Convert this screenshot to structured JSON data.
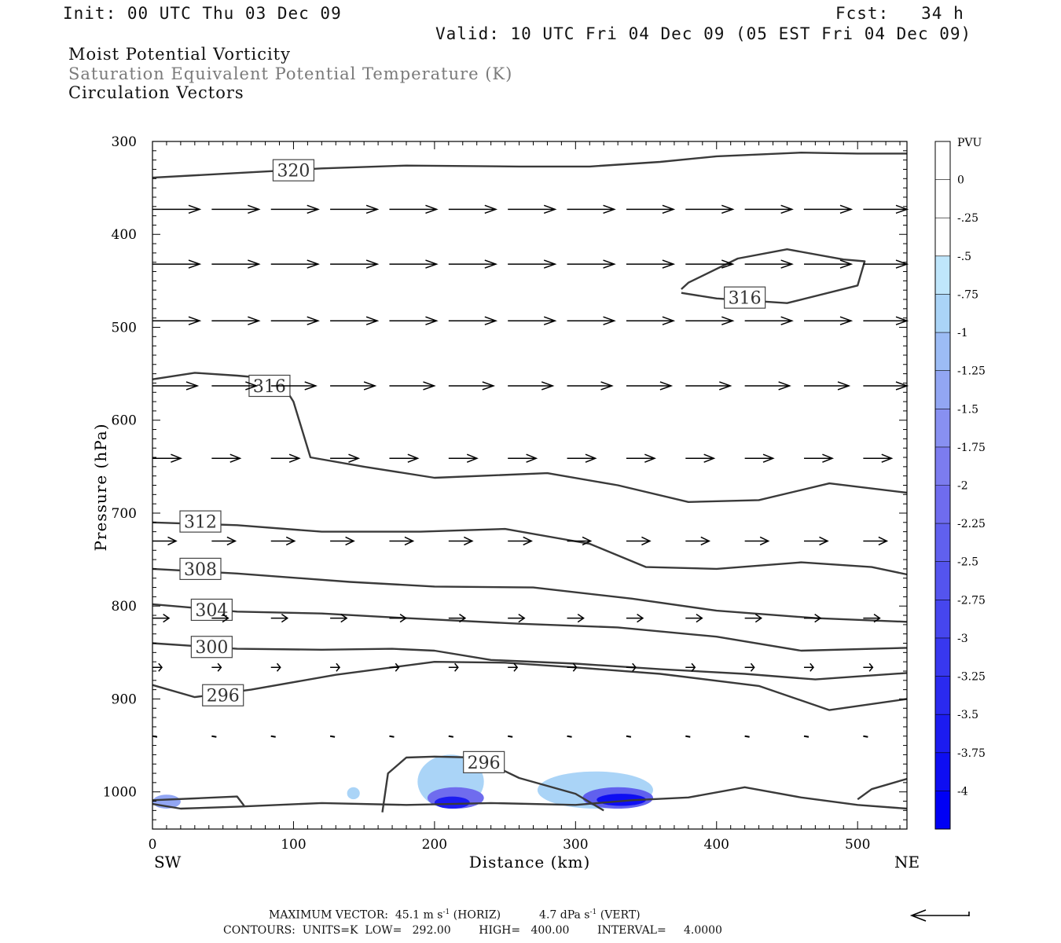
{
  "header": {
    "init": "Init: 00 UTC Thu 03 Dec 09",
    "fcst": "Fcst:   34 h",
    "valid": "Valid: 10 UTC Fri 04 Dec 09 (05 EST Fri 04 Dec 09)",
    "line1": "Moist Potential Vorticity",
    "line2": "Saturation Equivalent Potential Temperature (K)",
    "line3": "Circulation Vectors"
  },
  "footer": {
    "max_vector_label": "MAXIMUM VECTOR:",
    "horiz_value": "45.1 m s",
    "horiz_sup": "-1",
    "horiz_tag": "(HORIZ)",
    "vert_value": "4.7 dPa s",
    "vert_sup": "-1",
    "vert_tag": "(VERT)",
    "contours": "CONTOURS:  UNITS=K  LOW=   292.00        HIGH=   400.00        INTERVAL=     4.0000"
  },
  "colors": {
    "contour": "#3a3a3a",
    "shade": [
      "#ffffff",
      "#ffffff",
      "#bfe6fb",
      "#aad4f7",
      "#9cbcf5",
      "#92a6f3",
      "#8890f1",
      "#7c7cef",
      "#6f6cee",
      "#6060ee",
      "#5454ee",
      "#4646ee",
      "#3838ef",
      "#2a2aef",
      "#1c1cf0",
      "#0e0ef2",
      "#0000f5"
    ]
  },
  "chart_data": {
    "type": "cross-section",
    "xlabel": "Distance (km)",
    "ylabel": "Pressure (hPa)",
    "xlim": [
      0,
      535
    ],
    "ylim": [
      300,
      1040
    ],
    "x_ticks": [
      "0",
      "100",
      "200",
      "300",
      "400",
      "500"
    ],
    "y_ticks": [
      "300",
      "400",
      "500",
      "600",
      "700",
      "800",
      "900",
      "1000"
    ],
    "endpoints": {
      "left": "SW",
      "right": "NE"
    },
    "colorbar": {
      "title": "PVU",
      "labels": [
        "0",
        "-.25",
        "-.5",
        "-.75",
        "-1",
        "-1.25",
        "-1.5",
        "-1.75",
        "-2",
        "-2.25",
        "-2.5",
        "-2.75",
        "-3",
        "-3.25",
        "-3.5",
        "-3.75",
        "-4"
      ]
    },
    "contours": [
      {
        "label": "320",
        "label_at": [
          100,
          331
        ],
        "points": [
          [
            0,
            339
          ],
          [
            60,
            334
          ],
          [
            120,
            329
          ],
          [
            180,
            326
          ],
          [
            260,
            327
          ],
          [
            310,
            327
          ],
          [
            360,
            322
          ],
          [
            400,
            316
          ],
          [
            460,
            312
          ],
          [
            500,
            313
          ],
          [
            535,
            313
          ]
        ]
      },
      {
        "label": "316",
        "label_at": [
          83,
          563
        ],
        "points": [
          [
            0,
            556
          ],
          [
            30,
            549
          ],
          [
            60,
            552
          ],
          [
            90,
            556
          ],
          [
            100,
            580
          ],
          [
            112,
            640
          ],
          [
            150,
            650
          ],
          [
            200,
            662
          ],
          [
            280,
            657
          ],
          [
            330,
            670
          ],
          [
            380,
            688
          ],
          [
            430,
            686
          ],
          [
            480,
            668
          ],
          [
            535,
            678
          ]
        ]
      },
      {
        "label": "316",
        "label_at": [
          420,
          468
        ],
        "points": [
          [
            375,
            459
          ],
          [
            380,
            452
          ],
          [
            415,
            426
          ],
          [
            450,
            416
          ],
          [
            490,
            427
          ],
          [
            505,
            429
          ],
          [
            500,
            455
          ],
          [
            450,
            474
          ],
          [
            400,
            469
          ],
          [
            375,
            463
          ]
        ]
      },
      {
        "label": "312",
        "label_at": [
          34,
          709
        ],
        "points": [
          [
            0,
            710
          ],
          [
            60,
            713
          ],
          [
            120,
            720
          ],
          [
            190,
            720
          ],
          [
            250,
            717
          ],
          [
            310,
            733
          ],
          [
            350,
            758
          ],
          [
            400,
            760
          ],
          [
            460,
            753
          ],
          [
            510,
            758
          ],
          [
            535,
            766
          ]
        ]
      },
      {
        "label": "308",
        "label_at": [
          34,
          760
        ],
        "points": [
          [
            0,
            760
          ],
          [
            60,
            765
          ],
          [
            140,
            774
          ],
          [
            200,
            779
          ],
          [
            270,
            780
          ],
          [
            340,
            792
          ],
          [
            400,
            805
          ],
          [
            470,
            813
          ],
          [
            535,
            817
          ]
        ]
      },
      {
        "label": "304",
        "label_at": [
          42,
          804
        ],
        "points": [
          [
            0,
            798
          ],
          [
            60,
            806
          ],
          [
            120,
            808
          ],
          [
            180,
            813
          ],
          [
            260,
            819
          ],
          [
            330,
            823
          ],
          [
            400,
            833
          ],
          [
            460,
            848
          ],
          [
            535,
            845
          ]
        ]
      },
      {
        "label": "300",
        "label_at": [
          42,
          844
        ],
        "points": [
          [
            0,
            840
          ],
          [
            60,
            846
          ],
          [
            120,
            847
          ],
          [
            170,
            846
          ],
          [
            200,
            848
          ],
          [
            240,
            858
          ],
          [
            300,
            862
          ],
          [
            360,
            868
          ],
          [
            420,
            873
          ],
          [
            470,
            879
          ],
          [
            535,
            872
          ]
        ]
      },
      {
        "label": "296",
        "label_at": [
          50,
          896
        ],
        "points": [
          [
            0,
            885
          ],
          [
            30,
            898
          ],
          [
            70,
            890
          ],
          [
            130,
            874
          ],
          [
            200,
            860
          ],
          [
            250,
            861
          ],
          [
            300,
            866
          ],
          [
            360,
            873
          ],
          [
            430,
            886
          ],
          [
            480,
            912
          ],
          [
            535,
            900
          ]
        ]
      },
      {
        "label": "296",
        "label_at": [
          235,
          968
        ],
        "points": [
          [
            163,
            1022
          ],
          [
            167,
            980
          ],
          [
            180,
            963
          ],
          [
            200,
            962
          ],
          [
            230,
            963
          ],
          [
            260,
            985
          ],
          [
            300,
            1002
          ],
          [
            320,
            1020
          ]
        ]
      },
      {
        "label": "",
        "label_at": null,
        "points": [
          [
            0,
            1013
          ],
          [
            20,
            1018
          ],
          [
            60,
            1016
          ],
          [
            120,
            1012
          ],
          [
            180,
            1014
          ],
          [
            240,
            1012
          ],
          [
            300,
            1014
          ],
          [
            340,
            1009
          ],
          [
            380,
            1006
          ],
          [
            420,
            995
          ],
          [
            460,
            1006
          ],
          [
            500,
            1014
          ],
          [
            535,
            1018
          ]
        ]
      },
      {
        "label": "",
        "label_at": null,
        "points": [
          [
            0,
            1009
          ],
          [
            30,
            1007
          ],
          [
            60,
            1005
          ],
          [
            65,
            1015
          ]
        ]
      },
      {
        "label": "",
        "label_at": null,
        "points": [
          [
            500,
            1008
          ],
          [
            510,
            997
          ],
          [
            535,
            986
          ]
        ]
      }
    ],
    "vector_rows": [
      {
        "p": 373,
        "u": 1.0,
        "v": 0.0
      },
      {
        "p": 432,
        "u": 1.0,
        "v": 0.0
      },
      {
        "p": 493,
        "u": 1.0,
        "v": 0.0
      },
      {
        "p": 563,
        "u": 0.95,
        "v": 0.0
      },
      {
        "p": 641,
        "u": 0.6,
        "v": 0.0
      },
      {
        "p": 730,
        "u": 0.5,
        "v": 0.0
      },
      {
        "p": 813,
        "u": 0.35,
        "v": 0.0
      },
      {
        "p": 866,
        "u": 0.2,
        "v": 0.0
      },
      {
        "p": 940,
        "u": 0.1,
        "v": 0.0
      }
    ],
    "pv_patches": [
      {
        "x": [
          188,
          235
        ],
        "p": [
          960,
          1018
        ],
        "level": 3
      },
      {
        "x": [
          195,
          235
        ],
        "p": [
          995,
          1018
        ],
        "level": 8
      },
      {
        "x": [
          200,
          225
        ],
        "p": [
          1005,
          1018
        ],
        "level": 14
      },
      {
        "x": [
          273,
          355
        ],
        "p": [
          978,
          1018
        ],
        "level": 3
      },
      {
        "x": [
          305,
          355
        ],
        "p": [
          995,
          1018
        ],
        "level": 9
      },
      {
        "x": [
          315,
          350
        ],
        "p": [
          1002,
          1015
        ],
        "level": 15
      },
      {
        "x": [
          0,
          20
        ],
        "p": [
          1003,
          1018
        ],
        "level": 5
      },
      {
        "x": [
          138,
          147
        ],
        "p": [
          995,
          1008
        ],
        "level": 3
      }
    ]
  }
}
